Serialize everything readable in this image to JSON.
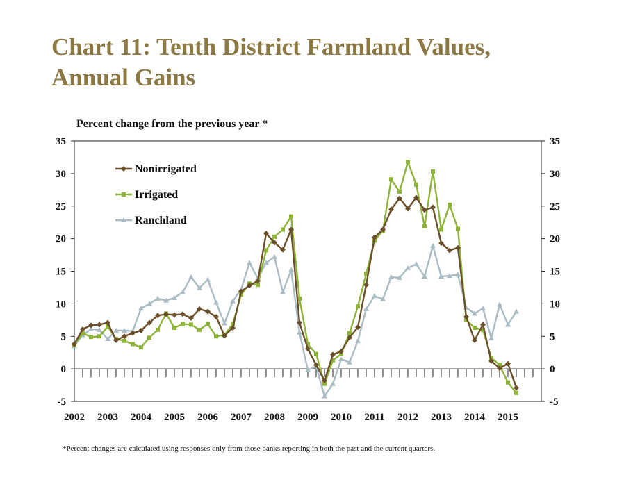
{
  "title_line1": "Chart 11: Tenth District Farmland Values,",
  "title_line2": "Annual Gains",
  "subtitle": "Percent change from the previous year *",
  "footnote": "*Percent changes are calculated using responses only from those banks reporting in both the past and the current quarters.",
  "colors": {
    "title": "#8b7842",
    "nonirrigated": "#6b4f2a",
    "irrigated": "#8db33a",
    "ranchland": "#a9bcc4"
  },
  "chart_data": {
    "type": "line",
    "ylim": [
      -5,
      35
    ],
    "yticks": [
      "35",
      "30",
      "25",
      "20",
      "15",
      "10",
      "5",
      "0",
      "-5"
    ],
    "x_labels": [
      "2002",
      "2003",
      "2004",
      "2005",
      "2006",
      "2007",
      "2008",
      "2009",
      "2010",
      "2011",
      "2012",
      "2013",
      "2014",
      "2015"
    ],
    "quarters_per_year": 4,
    "grid": false,
    "legend_position": "top-left",
    "series": [
      {
        "name": "Nonirrigated",
        "marker": "diamond",
        "values": [
          3.8,
          6.1,
          6.7,
          6.8,
          7.1,
          4.4,
          5.0,
          5.5,
          5.9,
          7.1,
          8.2,
          8.4,
          8.3,
          8.4,
          7.8,
          9.2,
          8.8,
          8.0,
          5.1,
          6.3,
          11.9,
          12.8,
          13.5,
          20.8,
          19.4,
          18.3,
          21.4,
          7.1,
          3.1,
          0.6,
          -1.8,
          2.2,
          2.7,
          4.8,
          6.4,
          12.9,
          20.2,
          21.4,
          24.5,
          26.2,
          24.6,
          26.3,
          24.4,
          24.8,
          19.3,
          18.2,
          18.6,
          8.0,
          4.4,
          6.8,
          1.2,
          0.1,
          0.8,
          -2.9
        ]
      },
      {
        "name": "Irrigated",
        "marker": "square",
        "values": [
          3.7,
          5.5,
          4.9,
          5.0,
          6.5,
          4.6,
          4.3,
          3.8,
          3.3,
          4.8,
          6.0,
          8.5,
          6.3,
          6.9,
          6.8,
          6.0,
          6.9,
          5.0,
          5.2,
          6.9,
          11.4,
          13.1,
          12.9,
          18.2,
          20.3,
          21.4,
          23.4,
          10.8,
          3.8,
          2.3,
          -2.3,
          1.3,
          2.3,
          5.5,
          9.6,
          14.6,
          19.7,
          21.2,
          29.1,
          27.2,
          31.8,
          28.3,
          21.9,
          30.3,
          21.4,
          25.2,
          21.5,
          7.5,
          6.3,
          6.0,
          1.7,
          0.6,
          -2.1,
          -3.7
        ]
      },
      {
        "name": "Ranchland",
        "marker": "triangle",
        "values": [
          3.5,
          5.2,
          6.1,
          6.0,
          4.6,
          5.9,
          5.9,
          5.8,
          9.3,
          10.0,
          10.8,
          10.5,
          10.9,
          11.8,
          14.1,
          12.4,
          13.7,
          10.2,
          7.0,
          10.4,
          12.2,
          16.3,
          13.9,
          16.3,
          17.2,
          11.8,
          15.2,
          5.6,
          -0.2,
          0.4,
          -4.2,
          -2.3,
          1.5,
          1.0,
          4.3,
          9.2,
          11.2,
          10.7,
          14.1,
          14.0,
          15.5,
          16.1,
          14.2,
          18.9,
          14.2,
          14.3,
          14.5,
          9.4,
          8.5,
          9.3,
          4.7,
          9.9,
          6.8,
          8.8
        ]
      }
    ]
  }
}
